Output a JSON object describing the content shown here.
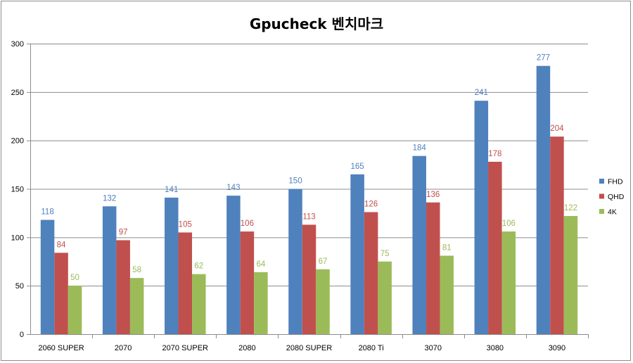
{
  "chart_data": {
    "type": "bar",
    "title": "Gpucheck 벤치마크",
    "xlabel": "",
    "ylabel": "",
    "ylim": [
      0,
      300
    ],
    "yticks": [
      0,
      50,
      100,
      150,
      200,
      250,
      300
    ],
    "grid": true,
    "legend_position": "right",
    "categories": [
      "2060 SUPER",
      "2070",
      "2070 SUPER",
      "2080",
      "2080 SUPER",
      "2080 Ti",
      "3070",
      "3080",
      "3090"
    ],
    "series": [
      {
        "name": "FHD",
        "color": "#4f81bd",
        "label_color": "#4f81bd",
        "values": [
          118,
          132,
          141,
          143,
          150,
          165,
          184,
          241,
          277
        ]
      },
      {
        "name": "QHD",
        "color": "#c0504d",
        "label_color": "#c0504d",
        "values": [
          84,
          97,
          105,
          106,
          113,
          126,
          136,
          178,
          204
        ]
      },
      {
        "name": "4K",
        "color": "#9bbb59",
        "label_color": "#9bbb59",
        "values": [
          50,
          58,
          62,
          64,
          67,
          75,
          81,
          106,
          122
        ]
      }
    ]
  }
}
